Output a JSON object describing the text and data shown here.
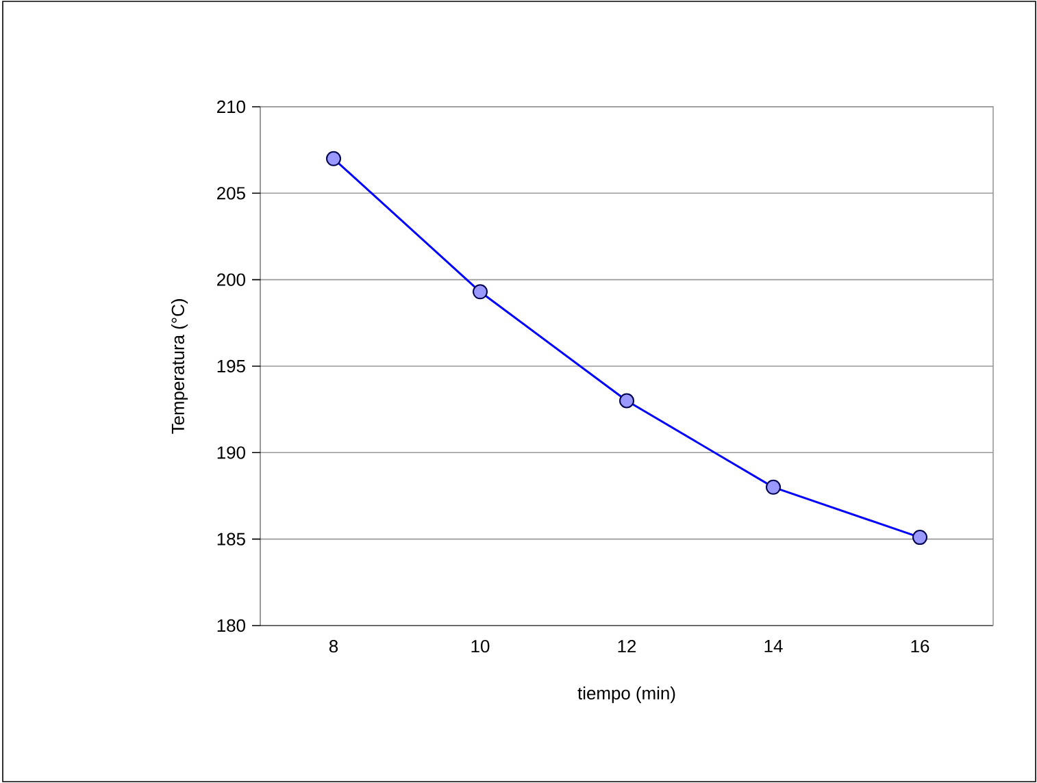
{
  "chart_data": {
    "type": "line",
    "xlabel": "tiempo (min)",
    "ylabel": "Temperatura (°C)",
    "categories": [
      "8",
      "10",
      "12",
      "14",
      "16"
    ],
    "series": [
      {
        "color": "#0000ff",
        "values": [
          207,
          199.3,
          193,
          188,
          185.1
        ]
      }
    ],
    "ylim": [
      180,
      210
    ],
    "yticks": [
      180,
      185,
      190,
      195,
      200,
      205,
      210
    ],
    "grid": "y",
    "marker": "circle",
    "line_style": "solid"
  }
}
